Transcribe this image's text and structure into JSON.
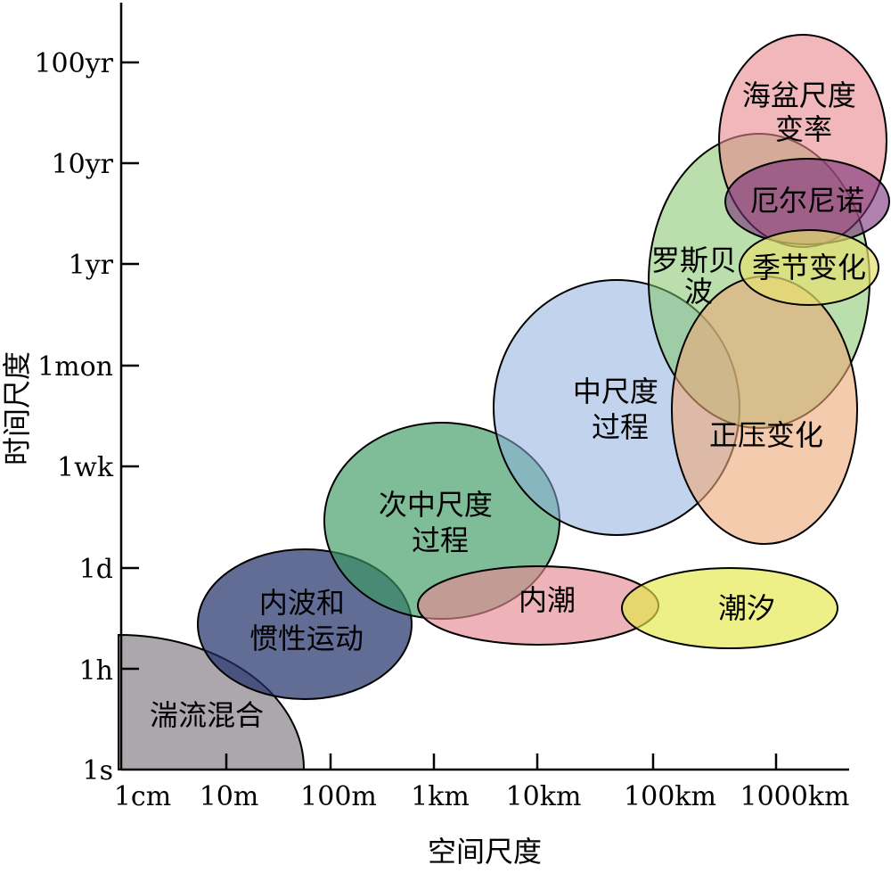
{
  "axes": {
    "xlabel": "空间尺度",
    "ylabel": "时间尺度",
    "x_ticks": [
      "1cm",
      "10m",
      "100m",
      "1km",
      "10km",
      "100km",
      "1000km"
    ],
    "y_ticks": [
      "1s",
      "1h",
      "1d",
      "1wk",
      "1mon",
      "1yr",
      "10yr",
      "100yr"
    ]
  },
  "regions": [
    {
      "id": "turbulent-mixing",
      "lines": [
        "湍流混合"
      ],
      "color": "#807880"
    },
    {
      "id": "internal-waves",
      "lines": [
        "内波和",
        "惯性运动"
      ],
      "color": "#1f2f6a"
    },
    {
      "id": "submesoscale",
      "lines": [
        "次中尺度",
        "过程"
      ],
      "color": "#3a9a63"
    },
    {
      "id": "internal-tide",
      "lines": [
        "内潮"
      ],
      "color": "#e48a92"
    },
    {
      "id": "tide",
      "lines": [
        "潮汐"
      ],
      "color": "#e3e845"
    },
    {
      "id": "mesoscale",
      "lines": [
        "中尺度",
        "过程"
      ],
      "color": "#8fb0de"
    },
    {
      "id": "barotropic",
      "lines": [
        "正压变化"
      ],
      "color": "#eea878"
    },
    {
      "id": "rossby-wave",
      "lines": [
        "罗斯贝",
        "波"
      ],
      "color": "#82c56a"
    },
    {
      "id": "basin-scale",
      "lines": [
        "海盆尺度",
        "变率"
      ],
      "color": "#e7878c"
    },
    {
      "id": "el-nino",
      "lines": [
        "厄尔尼诺"
      ],
      "color": "#7a2f7a"
    },
    {
      "id": "seasonal",
      "lines": [
        "季节变化"
      ],
      "color": "#e6e070"
    }
  ]
}
